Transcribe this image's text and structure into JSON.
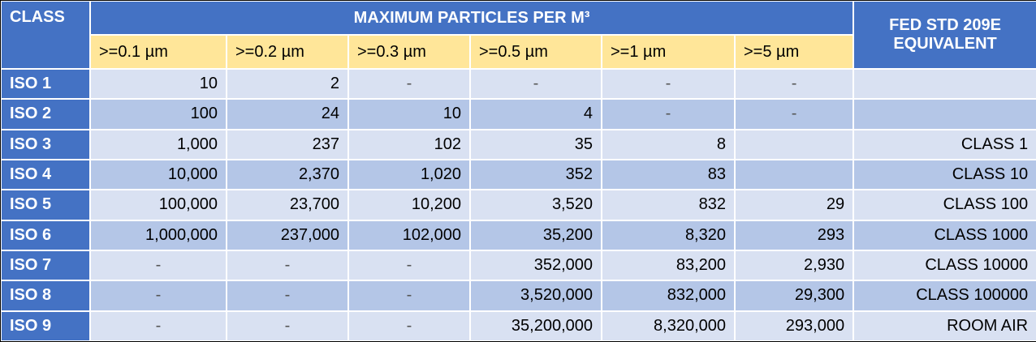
{
  "header": {
    "class": "CLASS",
    "group": "MAXIMUM PARTICLES PER M³",
    "equivalent": [
      "FED STD 209E",
      "EQUIVALENT"
    ],
    "sizes": [
      ">=0.1 µm",
      ">=0.2 µm",
      ">=0.3 µm",
      ">=0.5 µm",
      ">=1 µm",
      ">=5 µm"
    ]
  },
  "rows": [
    {
      "class": "ISO 1",
      "cells": [
        "10",
        "2",
        "-",
        "-",
        "-",
        "-"
      ],
      "equivalent": null
    },
    {
      "class": "ISO 2",
      "cells": [
        "100",
        "24",
        "10",
        "4",
        "-",
        "-"
      ],
      "equivalent": null
    },
    {
      "class": "ISO 3",
      "cells": [
        "1,000",
        "237",
        "102",
        "35",
        "8",
        null
      ],
      "equivalent": "CLASS 1"
    },
    {
      "class": "ISO 4",
      "cells": [
        "10,000",
        "2,370",
        "1,020",
        "352",
        "83",
        null
      ],
      "equivalent": "CLASS 10"
    },
    {
      "class": "ISO 5",
      "cells": [
        "100,000",
        "23,700",
        "10,200",
        "3,520",
        "832",
        "29"
      ],
      "equivalent": "CLASS 100"
    },
    {
      "class": "ISO 6",
      "cells": [
        "1,000,000",
        "237,000",
        "102,000",
        "35,200",
        "8,320",
        "293"
      ],
      "equivalent": "CLASS 1000"
    },
    {
      "class": "ISO 7",
      "cells": [
        "-",
        "-",
        "-",
        "352,000",
        "83,200",
        "2,930"
      ],
      "equivalent": "CLASS 10000"
    },
    {
      "class": "ISO 8",
      "cells": [
        "-",
        "-",
        "-",
        "3,520,000",
        "832,000",
        "29,300"
      ],
      "equivalent": "CLASS 100000"
    },
    {
      "class": "ISO 9",
      "cells": [
        "-",
        "-",
        "-",
        "35,200,000",
        "8,320,000",
        "293,000"
      ],
      "equivalent": "ROOM AIR"
    }
  ]
}
